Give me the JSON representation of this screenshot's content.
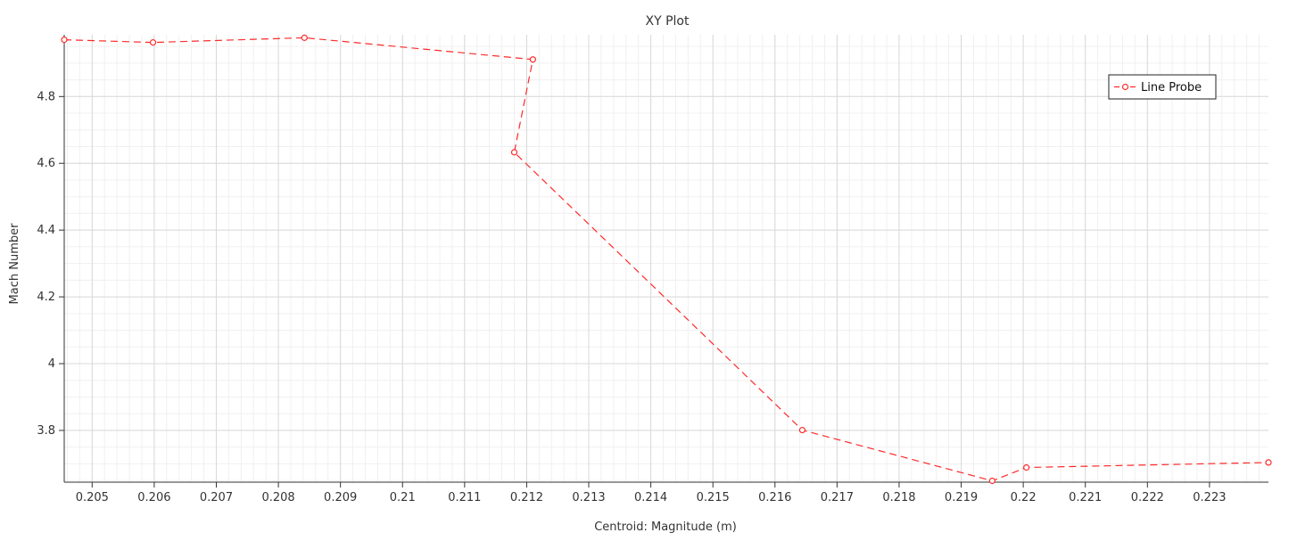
{
  "chart_data": {
    "type": "line",
    "title": "XY Plot",
    "xlabel": "Centroid: Magnitude (m)",
    "ylabel": "Mach Number",
    "xlim": [
      0.20455,
      0.22395
    ],
    "ylim": [
      3.645,
      4.985
    ],
    "x_ticks": [
      {
        "value": 0.205,
        "label": "0.205"
      },
      {
        "value": 0.206,
        "label": "0.206"
      },
      {
        "value": 0.207,
        "label": "0.207"
      },
      {
        "value": 0.208,
        "label": "0.208"
      },
      {
        "value": 0.209,
        "label": "0.209"
      },
      {
        "value": 0.21,
        "label": "0.21"
      },
      {
        "value": 0.211,
        "label": "0.211"
      },
      {
        "value": 0.212,
        "label": "0.212"
      },
      {
        "value": 0.213,
        "label": "0.213"
      },
      {
        "value": 0.214,
        "label": "0.214"
      },
      {
        "value": 0.215,
        "label": "0.215"
      },
      {
        "value": 0.216,
        "label": "0.216"
      },
      {
        "value": 0.217,
        "label": "0.217"
      },
      {
        "value": 0.218,
        "label": "0.218"
      },
      {
        "value": 0.219,
        "label": "0.219"
      },
      {
        "value": 0.22,
        "label": "0.22"
      },
      {
        "value": 0.221,
        "label": "0.221"
      },
      {
        "value": 0.222,
        "label": "0.222"
      },
      {
        "value": 0.223,
        "label": "0.223"
      }
    ],
    "y_ticks": [
      {
        "value": 3.8,
        "label": "3.8"
      },
      {
        "value": 4.0,
        "label": "4"
      },
      {
        "value": 4.2,
        "label": "4.2"
      },
      {
        "value": 4.4,
        "label": "4.4"
      },
      {
        "value": 4.6,
        "label": "4.6"
      },
      {
        "value": 4.8,
        "label": "4.8"
      }
    ],
    "series": [
      {
        "name": "Line Probe",
        "color": "#ff2a2a",
        "points": [
          {
            "x": 0.20455,
            "y": 4.97
          },
          {
            "x": 0.20598,
            "y": 4.962
          },
          {
            "x": 0.20842,
            "y": 4.976
          },
          {
            "x": 0.2121,
            "y": 4.911
          },
          {
            "x": 0.2118,
            "y": 4.633
          },
          {
            "x": 0.21644,
            "y": 3.801
          },
          {
            "x": 0.2195,
            "y": 3.649
          },
          {
            "x": 0.22005,
            "y": 3.689
          },
          {
            "x": 0.22395,
            "y": 3.704
          }
        ]
      }
    ],
    "legend": {
      "position": "top-right",
      "entries": [
        "Line Probe"
      ]
    },
    "grid": true
  }
}
